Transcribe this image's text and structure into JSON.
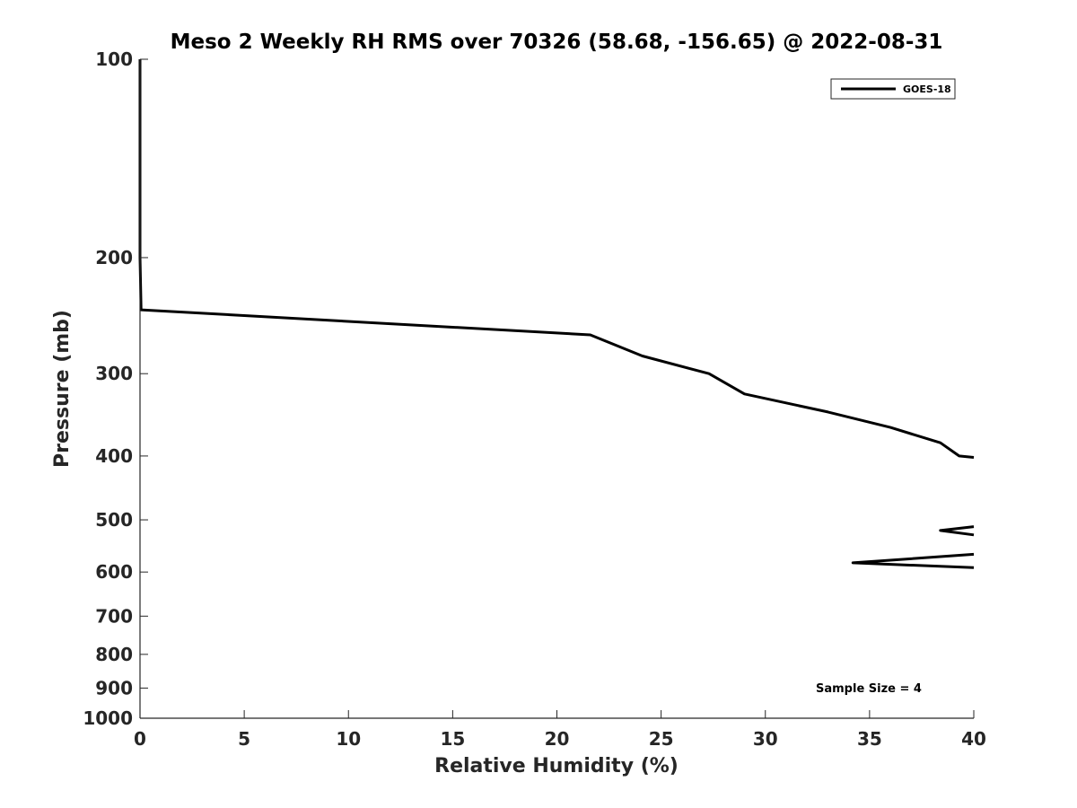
{
  "chart_data": {
    "type": "line",
    "title": "Meso 2 Weekly RH RMS over 70326 (58.68, -156.65) @ 2022-08-31",
    "xlabel": "Relative Humidity (%)",
    "ylabel": "Pressure (mb)",
    "xlim": [
      0,
      40
    ],
    "ylim": [
      100,
      1000
    ],
    "yscale": "log",
    "y_reversed": true,
    "grid": false,
    "x_ticks": [
      0,
      5,
      10,
      15,
      20,
      25,
      30,
      35,
      40
    ],
    "x_tick_labels": [
      "0",
      "5",
      "10",
      "15",
      "20",
      "25",
      "30",
      "35",
      "40"
    ],
    "y_ticks": [
      100,
      200,
      300,
      400,
      500,
      600,
      700,
      800,
      900,
      1000
    ],
    "y_tick_labels": [
      "100",
      "200",
      "300",
      "400",
      "500",
      "600",
      "700",
      "800",
      "900",
      "1000"
    ],
    "legend": {
      "position": "top-right",
      "entries": [
        "GOES-18"
      ]
    },
    "annotation": "Sample Size = 4",
    "series": [
      {
        "name": "GOES-18",
        "color": "#000000",
        "points": [
          [
            0.0,
            100
          ],
          [
            0.0,
            150
          ],
          [
            0.0,
            200
          ],
          [
            0.05,
            240
          ],
          [
            21.6,
            262
          ],
          [
            24.1,
            282
          ],
          [
            27.3,
            300
          ],
          [
            29.0,
            322
          ],
          [
            33.0,
            343
          ],
          [
            36.0,
            362
          ],
          [
            38.4,
            382
          ],
          [
            39.3,
            400
          ],
          [
            40.0,
            402
          ]
        ]
      },
      {
        "name": "GOES-18",
        "color": "#000000",
        "points": [
          [
            40.0,
            512
          ],
          [
            38.4,
            519
          ],
          [
            40.0,
            527
          ]
        ]
      },
      {
        "name": "GOES-18",
        "color": "#000000",
        "points": [
          [
            40.0,
            564
          ],
          [
            34.2,
            581
          ],
          [
            40.0,
            591
          ]
        ]
      }
    ]
  }
}
